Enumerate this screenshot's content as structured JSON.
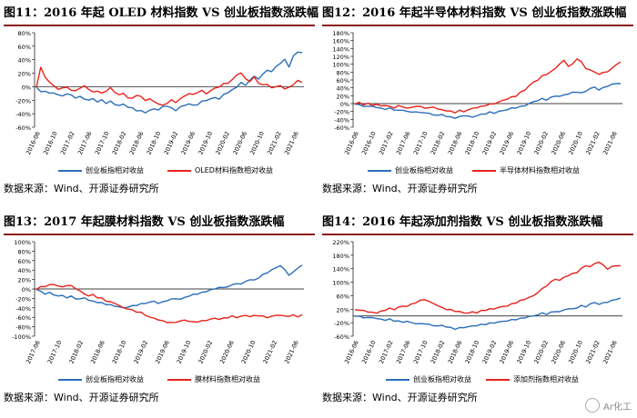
{
  "colors": {
    "blue": "#2a6ebb",
    "red": "#e8231a",
    "title_rule": "#8b1a1a",
    "axis": "#000000"
  },
  "source_text": "数据来源：Wind、开源证券研究所",
  "watermark": "Ar化工",
  "charts": [
    {
      "id": "fig11",
      "title": "图11：2016 年起 OLED 材料指数 VS 创业板指数涨跌幅",
      "yticks": [
        "80%",
        "60%",
        "40%",
        "20%",
        "0%",
        "-20%",
        "-40%",
        "-60%"
      ],
      "ymin": -60,
      "ymax": 80,
      "xticks": [
        "2016-06",
        "2016-10",
        "2017-02",
        "2017-06",
        "2017-10",
        "2018-02",
        "2018-06",
        "2018-10",
        "2019-02",
        "2019-06",
        "2019-10",
        "2020-02",
        "2020-06",
        "2020-10",
        "2021-02",
        "2021-06"
      ],
      "legend": [
        "创业板指相对收益",
        "OLED材料指数相对收益"
      ],
      "chart_data": {
        "type": "line",
        "series": [
          {
            "name": "创业板指相对收益",
            "color": "blue",
            "values": [
              0,
              -8,
              -6,
              -10,
              -9,
              -12,
              -14,
              -10,
              -13,
              -16,
              -15,
              -18,
              -20,
              -18,
              -22,
              -20,
              -24,
              -22,
              -26,
              -28,
              -26,
              -30,
              -32,
              -35,
              -36,
              -38,
              -35,
              -33,
              -34,
              -30,
              -28,
              -32,
              -35,
              -30,
              -28,
              -25,
              -28,
              -26,
              -22,
              -20,
              -18,
              -16,
              -18,
              -12,
              -8,
              -5,
              0,
              6,
              2,
              10,
              15,
              12,
              18,
              25,
              22,
              30,
              35,
              40,
              30,
              45,
              52,
              50
            ]
          },
          {
            "name": "OLED材料指数相对收益",
            "color": "red",
            "values": [
              0,
              28,
              15,
              6,
              2,
              -4,
              -2,
              0,
              -6,
              -5,
              -3,
              2,
              -4,
              -8,
              -6,
              -10,
              -6,
              -2,
              -8,
              -12,
              -10,
              -16,
              -18,
              -12,
              -15,
              -20,
              -18,
              -22,
              -25,
              -28,
              -24,
              -20,
              -23,
              -18,
              -14,
              -10,
              -12,
              -8,
              -6,
              -10,
              -6,
              -2,
              0,
              4,
              6,
              10,
              18,
              20,
              12,
              8,
              14,
              6,
              2,
              4,
              -2,
              0,
              2,
              -4,
              0,
              2,
              10,
              6
            ]
          }
        ]
      }
    },
    {
      "id": "fig12",
      "title": "图12：2016 年起半导体材料指数 VS 创业板指数涨跌幅",
      "yticks": [
        "180%",
        "160%",
        "140%",
        "120%",
        "100%",
        "80%",
        "60%",
        "40%",
        "20%",
        "0%",
        "-20%",
        "-40%",
        "-60%"
      ],
      "ymin": -60,
      "ymax": 180,
      "xticks": [
        "2016-06",
        "2016-10",
        "2017-02",
        "2017-06",
        "2017-10",
        "2018-02",
        "2018-06",
        "2018-10",
        "2019-02",
        "2019-06",
        "2019-10",
        "2020-02",
        "2020-06",
        "2020-10",
        "2021-02",
        "2021-06"
      ],
      "legend": [
        "创业板指相对收益",
        "半导体材料指数相对收益"
      ],
      "chart_data": {
        "type": "line",
        "series": [
          {
            "name": "创业板指相对收益",
            "color": "blue",
            "values": [
              0,
              -4,
              -6,
              -8,
              -6,
              -10,
              -12,
              -14,
              -12,
              -15,
              -18,
              -16,
              -20,
              -22,
              -20,
              -24,
              -22,
              -26,
              -28,
              -30,
              -28,
              -32,
              -35,
              -36,
              -34,
              -30,
              -32,
              -35,
              -30,
              -28,
              -25,
              -22,
              -24,
              -20,
              -18,
              -15,
              -12,
              -10,
              -8,
              -5,
              0,
              5,
              8,
              12,
              10,
              15,
              20,
              18,
              22,
              25,
              28,
              30,
              26,
              32,
              38,
              42,
              35,
              40,
              45,
              48,
              52,
              50
            ]
          },
          {
            "name": "半导体材料指数相对收益",
            "color": "red",
            "values": [
              0,
              2,
              -2,
              0,
              -4,
              -2,
              -6,
              -4,
              -8,
              -10,
              -6,
              -8,
              -12,
              -10,
              -6,
              -8,
              -10,
              -12,
              -8,
              -14,
              -16,
              -18,
              -20,
              -22,
              -18,
              -20,
              -16,
              -12,
              -10,
              -8,
              -4,
              -2,
              0,
              4,
              8,
              12,
              16,
              20,
              28,
              35,
              45,
              55,
              60,
              70,
              75,
              80,
              90,
              100,
              110,
              95,
              100,
              115,
              105,
              90,
              85,
              80,
              75,
              78,
              82,
              88,
              100,
              105
            ]
          }
        ]
      }
    },
    {
      "id": "fig13",
      "title": "图13：2017 年起膜材料指数 VS 创业板指数涨跌幅",
      "yticks": [
        "100%",
        "80%",
        "60%",
        "40%",
        "20%",
        "0%",
        "-20%",
        "-40%",
        "-60%",
        "-80%",
        "-100%"
      ],
      "ymin": -100,
      "ymax": 100,
      "xticks": [
        "2017-06",
        "2017-10",
        "2018-02",
        "2018-06",
        "2018-10",
        "2019-02",
        "2019-06",
        "2019-10",
        "2020-02",
        "2020-06",
        "2020-10",
        "2021-02",
        "2021-06"
      ],
      "legend": [
        "创业板指相对收益",
        "膜材料指数相对收益"
      ],
      "chart_data": {
        "type": "line",
        "series": [
          {
            "name": "创业板指相对收益",
            "color": "blue",
            "values": [
              0,
              -6,
              -10,
              -8,
              -12,
              -15,
              -14,
              -18,
              -16,
              -20,
              -22,
              -18,
              -24,
              -26,
              -28,
              -30,
              -32,
              -34,
              -36,
              -38,
              -40,
              -38,
              -36,
              -34,
              -32,
              -30,
              -28,
              -26,
              -30,
              -28,
              -24,
              -22,
              -20,
              -22,
              -18,
              -15,
              -12,
              -10,
              -8,
              -5,
              -2,
              0,
              4,
              2,
              6,
              8,
              12,
              10,
              16,
              20,
              18,
              24,
              30,
              35,
              40,
              45,
              50,
              40,
              30,
              35,
              45,
              50
            ]
          },
          {
            "name": "膜材料指数相对收益",
            "color": "red",
            "values": [
              0,
              4,
              6,
              8,
              10,
              6,
              4,
              8,
              6,
              2,
              -5,
              -10,
              -15,
              -12,
              -18,
              -20,
              -25,
              -28,
              -30,
              -35,
              -40,
              -42,
              -45,
              -48,
              -50,
              -55,
              -60,
              -62,
              -65,
              -68,
              -70,
              -72,
              -70,
              -68,
              -66,
              -68,
              -70,
              -69,
              -68,
              -66,
              -64,
              -62,
              -64,
              -62,
              -60,
              -58,
              -60,
              -58,
              -56,
              -58,
              -57,
              -56,
              -58,
              -60,
              -58,
              -56,
              -55,
              -58,
              -57,
              -56,
              -58,
              -55
            ]
          }
        ]
      }
    },
    {
      "id": "fig14",
      "title": "图14：2016 年起添加剂指数 VS 创业板指数涨跌幅",
      "yticks": [
        "220%",
        "180%",
        "140%",
        "100%",
        "60%",
        "20%",
        "-20%",
        "-60%"
      ],
      "ymin": -60,
      "ymax": 220,
      "xticks": [
        "2016-06",
        "2016-10",
        "2017-02",
        "2017-06",
        "2017-10",
        "2018-02",
        "2018-06",
        "2018-10",
        "2019-02",
        "2019-06",
        "2019-10",
        "2020-02",
        "2020-06",
        "2020-10",
        "2021-02",
        "2021-06"
      ],
      "legend": [
        "创业板指相对收益",
        "添加剂指数相对收益"
      ],
      "chart_data": {
        "type": "line",
        "series": [
          {
            "name": "创业板指相对收益",
            "color": "blue",
            "values": [
              0,
              -2,
              -4,
              -6,
              -4,
              -8,
              -10,
              -12,
              -10,
              -14,
              -16,
              -18,
              -16,
              -20,
              -22,
              -24,
              -22,
              -26,
              -28,
              -30,
              -28,
              -32,
              -35,
              -38,
              -36,
              -34,
              -32,
              -30,
              -28,
              -26,
              -24,
              -22,
              -20,
              -18,
              -16,
              -14,
              -12,
              -10,
              -8,
              -5,
              -2,
              0,
              4,
              8,
              6,
              10,
              14,
              12,
              18,
              22,
              20,
              25,
              30,
              28,
              35,
              40,
              35,
              38,
              42,
              45,
              50,
              52
            ]
          },
          {
            "name": "添加剂指数相对收益",
            "color": "red",
            "values": [
              20,
              15,
              18,
              10,
              12,
              8,
              14,
              18,
              22,
              20,
              25,
              30,
              28,
              35,
              40,
              45,
              50,
              42,
              38,
              30,
              25,
              20,
              18,
              15,
              12,
              10,
              8,
              12,
              10,
              15,
              18,
              20,
              22,
              25,
              28,
              30,
              35,
              40,
              45,
              50,
              55,
              60,
              70,
              80,
              90,
              100,
              110,
              105,
              115,
              120,
              125,
              130,
              140,
              150,
              145,
              155,
              160,
              150,
              140,
              145,
              150,
              148
            ]
          }
        ]
      }
    }
  ]
}
